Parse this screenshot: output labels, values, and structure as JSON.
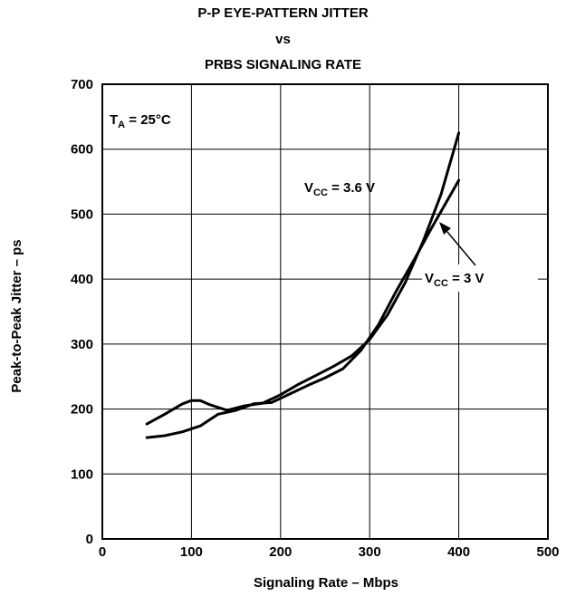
{
  "title": {
    "line1": "P-P EYE-PATTERN JITTER",
    "line2": "vs",
    "line3": "PRBS SIGNALING RATE"
  },
  "chart_data": {
    "type": "line",
    "title": "P-P EYE-PATTERN JITTER vs PRBS SIGNALING RATE",
    "xlabel": "Signaling Rate – Mbps",
    "ylabel": "Peak-to-Peak Jitter – ps",
    "xlim": [
      0,
      500
    ],
    "ylim": [
      0,
      700
    ],
    "x_ticks": [
      0,
      100,
      200,
      300,
      400,
      500
    ],
    "y_ticks": [
      0,
      100,
      200,
      300,
      400,
      500,
      600,
      700
    ],
    "grid": true,
    "condition": {
      "main": "T",
      "sub": "A",
      "rest": " = 25°C"
    },
    "series": [
      {
        "name": "VCC = 3.6 V",
        "label_main": "V",
        "label_sub": "CC",
        "label_rest": " = 3.6 V",
        "x": [
          50,
          70,
          90,
          100,
          110,
          120,
          140,
          160,
          180,
          200,
          220,
          240,
          260,
          280,
          300,
          320,
          340,
          360,
          380,
          400
        ],
        "y": [
          177,
          192,
          208,
          213,
          213,
          207,
          198,
          205,
          209,
          222,
          238,
          252,
          266,
          282,
          307,
          345,
          395,
          458,
          530,
          625
        ]
      },
      {
        "name": "VCC = 3 V",
        "label_main": "V",
        "label_sub": "CC",
        "label_rest": " =  3 V",
        "x": [
          50,
          70,
          90,
          110,
          130,
          150,
          170,
          190,
          210,
          230,
          250,
          270,
          290,
          310,
          330,
          350,
          370,
          400
        ],
        "y": [
          156,
          159,
          165,
          174,
          192,
          198,
          208,
          210,
          223,
          236,
          248,
          262,
          290,
          330,
          382,
          430,
          480,
          552
        ]
      }
    ]
  }
}
